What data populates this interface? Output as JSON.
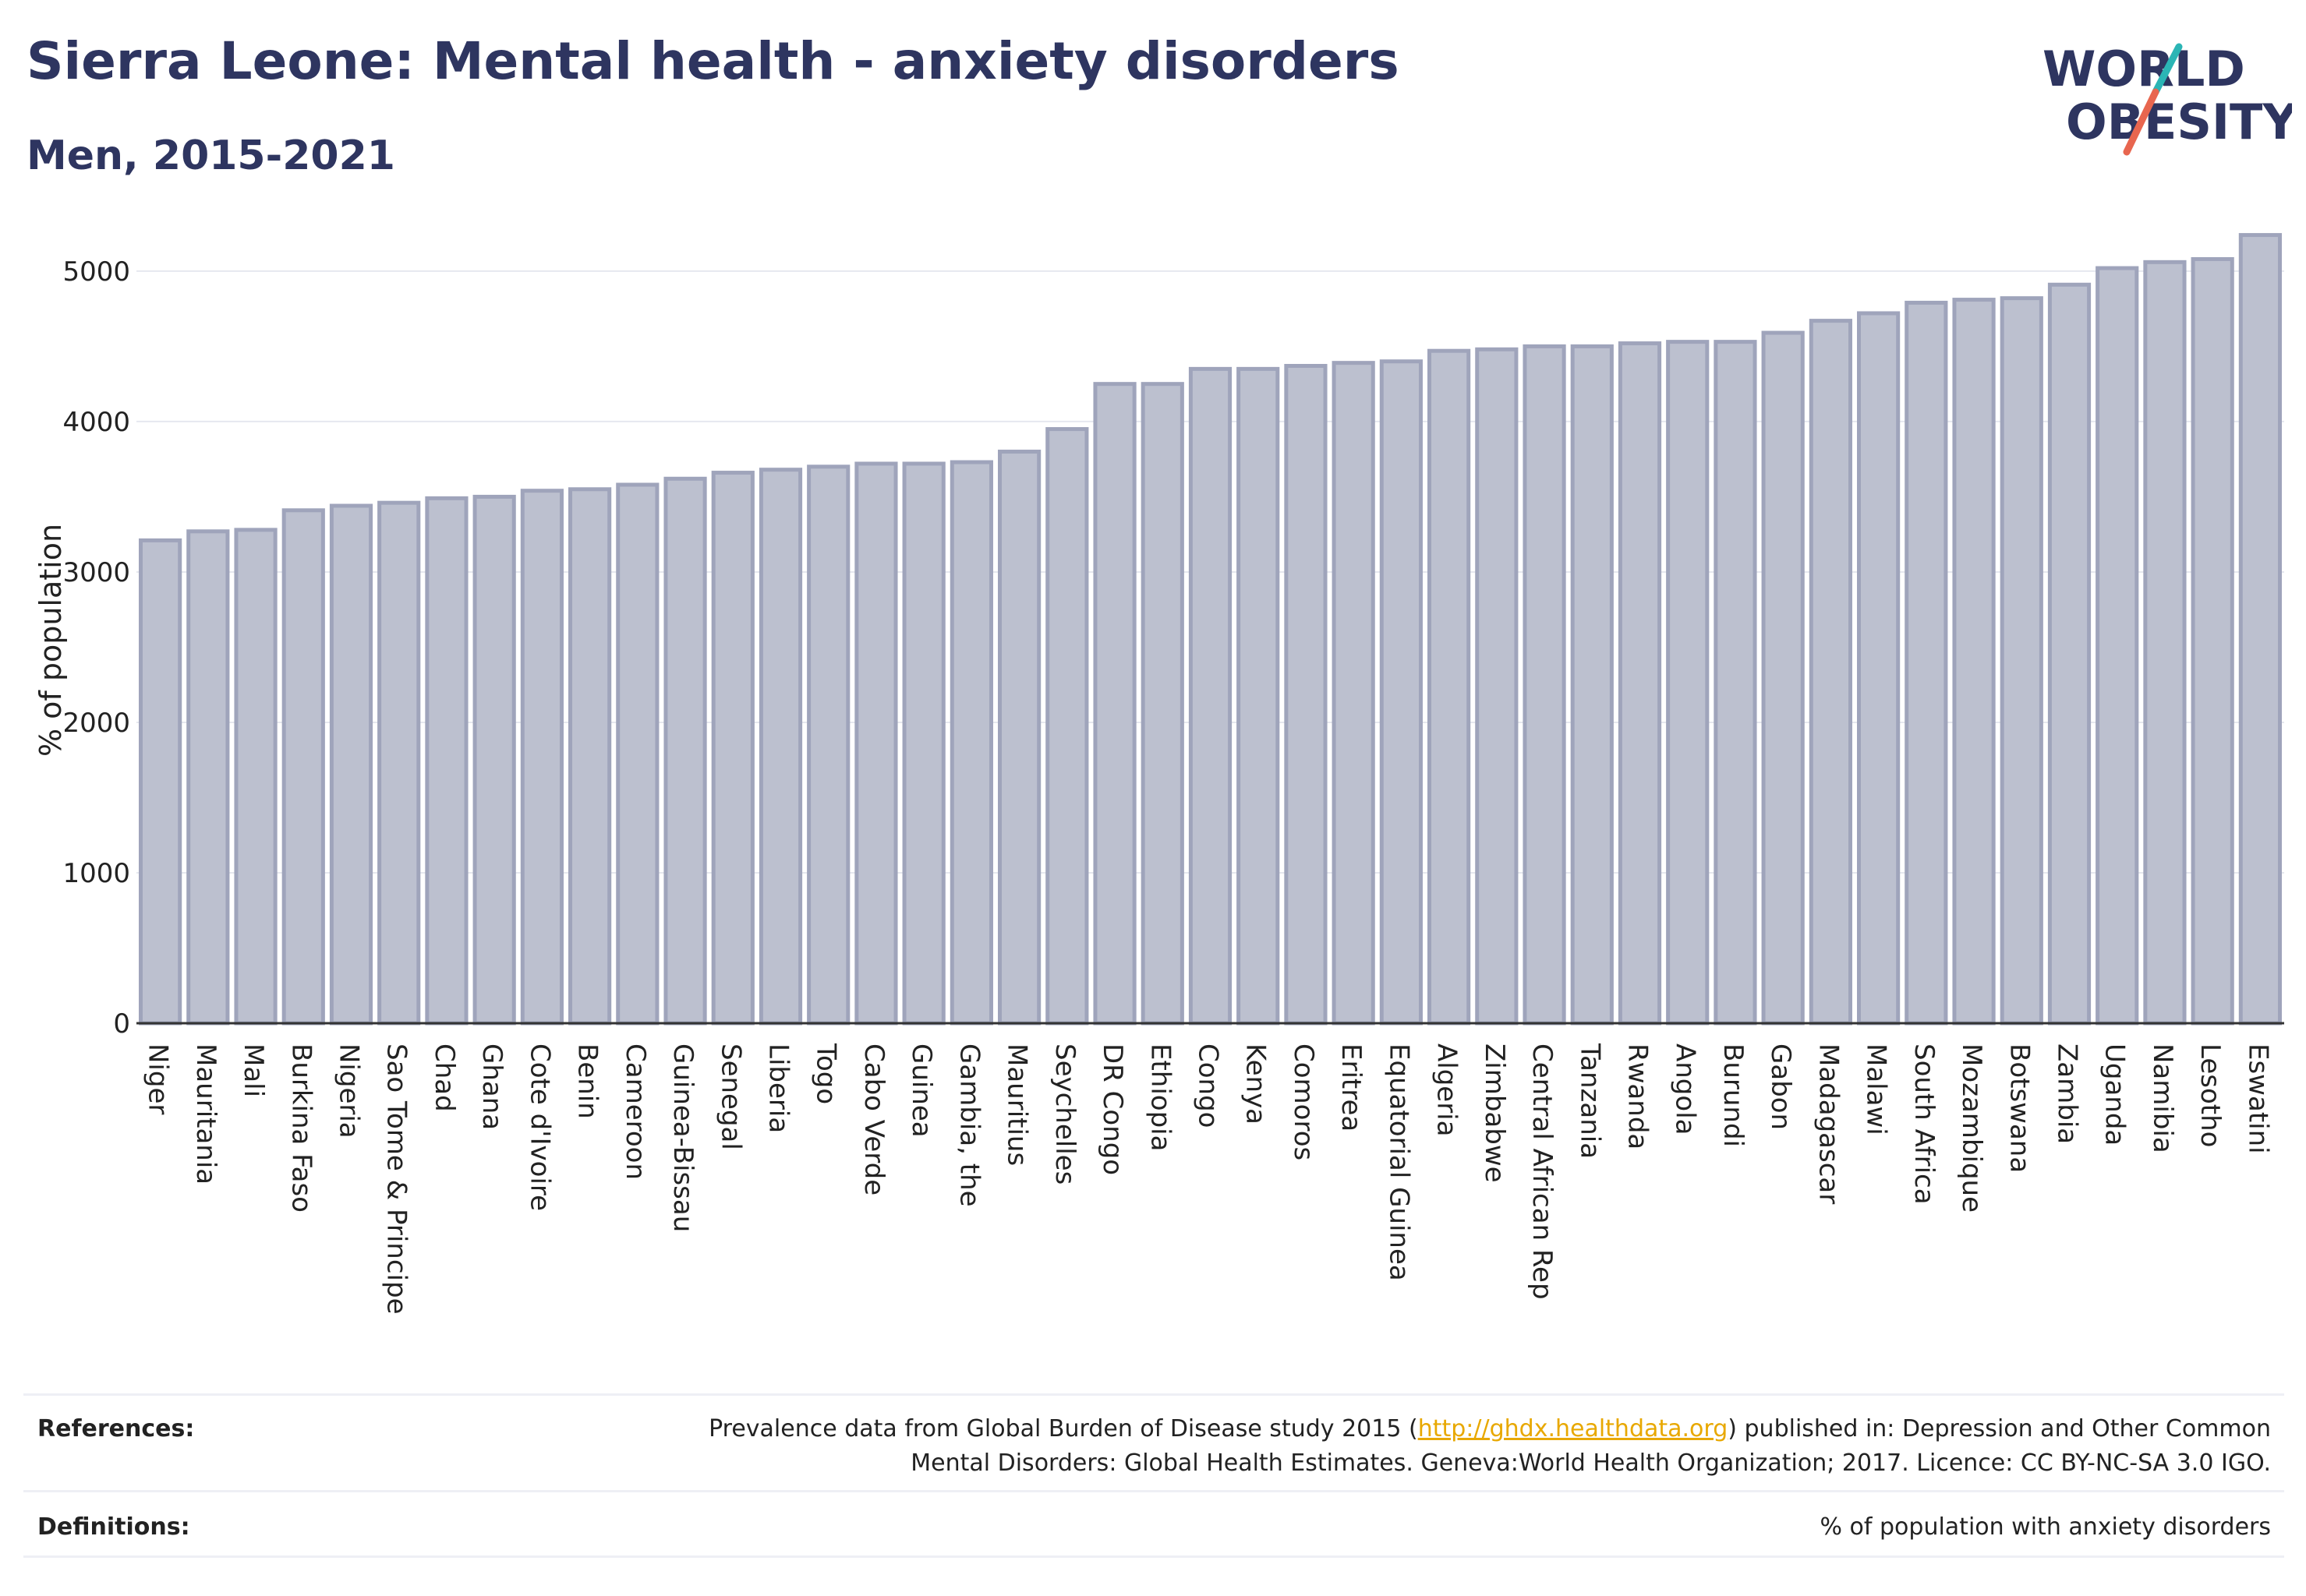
{
  "header": {
    "title": "Sierra Leone: Mental health - anxiety disorders",
    "subtitle": "Men, 2015-2021"
  },
  "logo": {
    "line1": "WORLD",
    "line2": "OBESITY",
    "colors": {
      "text": "#2e3560",
      "slash_top": "#2bb5b5",
      "slash_bottom": "#e8664f"
    }
  },
  "chart_data": {
    "type": "bar",
    "title": "Sierra Leone: Mental health - anxiety disorders",
    "subtitle": "Men, 2015-2021",
    "xlabel": "",
    "ylabel": "% of population",
    "ylim": [
      0,
      5300
    ],
    "yticks": [
      0,
      1000,
      2000,
      3000,
      4000,
      5000
    ],
    "grid": true,
    "bar_color": "#bcc0cf",
    "bar_edge_color": "#9fa4bb",
    "categories": [
      "Niger",
      "Mauritania",
      "Mali",
      "Burkina Faso",
      "Nigeria",
      "Sao Tome & Principe",
      "Chad",
      "Ghana",
      "Cote d'Ivoire",
      "Benin",
      "Cameroon",
      "Guinea-Bissau",
      "Senegal",
      "Liberia",
      "Togo",
      "Cabo Verde",
      "Guinea",
      "Gambia, the",
      "Mauritius",
      "Seychelles",
      "DR Congo",
      "Ethiopia",
      "Congo",
      "Kenya",
      "Comoros",
      "Eritrea",
      "Equatorial Guinea",
      "Algeria",
      "Zimbabwe",
      "Central African Rep",
      "Tanzania",
      "Rwanda",
      "Angola",
      "Burundi",
      "Gabon",
      "Madagascar",
      "Malawi",
      "South Africa",
      "Mozambique",
      "Botswana",
      "Zambia",
      "Uganda",
      "Namibia",
      "Lesotho",
      "Eswatini"
    ],
    "values": [
      3210,
      3270,
      3280,
      3410,
      3440,
      3460,
      3490,
      3500,
      3540,
      3550,
      3580,
      3620,
      3660,
      3680,
      3700,
      3720,
      3720,
      3730,
      3800,
      3950,
      4250,
      4250,
      4350,
      4350,
      4370,
      4390,
      4400,
      4470,
      4480,
      4500,
      4500,
      4520,
      4530,
      4530,
      4590,
      4670,
      4720,
      4790,
      4810,
      4820,
      4910,
      5020,
      5060,
      5080,
      5240
    ]
  },
  "references": {
    "label": "References:",
    "text_before": "Prevalence data from Global Burden of Disease study 2015 (",
    "link": "http://ghdx.healthdata.org",
    "text_after": ") published in: Depression and Other Common",
    "line2": "Mental Disorders: Global Health Estimates. Geneva:World Health Organization; 2017. Licence: CC BY-NC-SA 3.0 IGO."
  },
  "definitions": {
    "label": "Definitions:",
    "text": "% of population with anxiety disorders"
  }
}
